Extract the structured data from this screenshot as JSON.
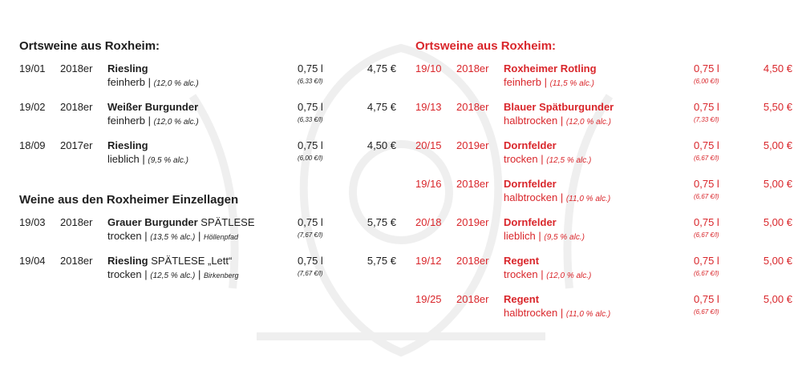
{
  "left": {
    "sections": [
      {
        "title": "Ortsweine aus Roxheim:",
        "wines": [
          {
            "nr": "19/01",
            "year": "2018er",
            "name": "Riesling",
            "suffix": "",
            "taste": "feinherb",
            "alc": "(12,0 % alc.)",
            "lage": "",
            "volume": "0,75 l",
            "per_liter": "(6,33 €/l)",
            "price": "4,75 €"
          },
          {
            "nr": "19/02",
            "year": "2018er",
            "name": "Weißer Burgunder",
            "suffix": "",
            "taste": "feinherb",
            "alc": "(12,0 % alc.)",
            "lage": "",
            "volume": "0,75 l",
            "per_liter": "(6,33 €/l)",
            "price": "4,75 €"
          },
          {
            "nr": "18/09",
            "year": "2017er",
            "name": "Riesling",
            "suffix": "",
            "taste": "lieblich",
            "alc": "(9,5 % alc.)",
            "lage": "",
            "volume": "0,75 l",
            "per_liter": "(6,00 €/l)",
            "price": "4,50 €"
          }
        ]
      },
      {
        "title": "Weine aus den Roxheimer Einzellagen",
        "wines": [
          {
            "nr": "19/03",
            "year": "2018er",
            "name": "Grauer Burgunder",
            "suffix": " SPÄTLESE",
            "taste": "trocken",
            "alc": "(13,5 % alc.)",
            "lage": "Höllenpfad",
            "volume": "0,75 l",
            "per_liter": "(7,67 €/l)",
            "price": "5,75 €"
          },
          {
            "nr": "19/04",
            "year": "2018er",
            "name": "Riesling",
            "suffix": " SPÄTLESE „Lett“",
            "taste": "trocken",
            "alc": "(12,5 % alc.)",
            "lage": "Birkenberg",
            "volume": "0,75 l",
            "per_liter": "(7,67 €/l)",
            "price": "5,75 €"
          }
        ]
      }
    ]
  },
  "right": {
    "sections": [
      {
        "title": "Ortsweine aus Roxheim:",
        "wines": [
          {
            "nr": "19/10",
            "year": "2018er",
            "name": "Roxheimer Rotling",
            "suffix": "",
            "taste": "feinherb",
            "alc": "(11,5 % alc.)",
            "lage": "",
            "volume": "0,75 l",
            "per_liter": "(6,00 €/l)",
            "price": "4,50 €"
          },
          {
            "nr": "19/13",
            "year": "2018er",
            "name": "Blauer Spätburgunder",
            "suffix": "",
            "taste": "halbtrocken",
            "alc": "(12,0 % alc.)",
            "lage": "",
            "volume": "0,75 l",
            "per_liter": "(7,33 €/l)",
            "price": "5,50 €"
          },
          {
            "nr": "20/15",
            "year": "2019er",
            "name": "Dornfelder",
            "suffix": "",
            "taste": "trocken",
            "alc": "(12,5 % alc.)",
            "lage": "",
            "volume": "0,75 l",
            "per_liter": "(6,67 €/l)",
            "price": "5,00 €"
          },
          {
            "nr": "19/16",
            "year": "2018er",
            "name": "Dornfelder",
            "suffix": "",
            "taste": "halbtrocken",
            "alc": "(11,0 % alc.)",
            "lage": "",
            "volume": "0,75 l",
            "per_liter": "(6,67 €/l)",
            "price": "5,00 €"
          },
          {
            "nr": "20/18",
            "year": "2019er",
            "name": "Dornfelder",
            "suffix": "",
            "taste": "lieblich",
            "alc": "(9,5 % alc.)",
            "lage": "",
            "volume": "0,75 l",
            "per_liter": "(6,67 €/l)",
            "price": "5,00 €"
          },
          {
            "nr": "19/12",
            "year": "2018er",
            "name": "Regent",
            "suffix": "",
            "taste": "trocken",
            "alc": "(12,0 % alc.)",
            "lage": "",
            "volume": "0,75 l",
            "per_liter": "(6,67 €/l)",
            "price": "5,00 €"
          },
          {
            "nr": "19/25",
            "year": "2018er",
            "name": "Regent",
            "suffix": "",
            "taste": "halbtrocken",
            "alc": "(11,0 % alc.)",
            "lage": "",
            "volume": "0,75 l",
            "per_liter": "(6,67 €/l)",
            "price": "5,00 €"
          }
        ]
      }
    ]
  },
  "colors": {
    "left_text": "#1e1e1e",
    "right_text": "#d9262b",
    "watermark": "#000000"
  }
}
